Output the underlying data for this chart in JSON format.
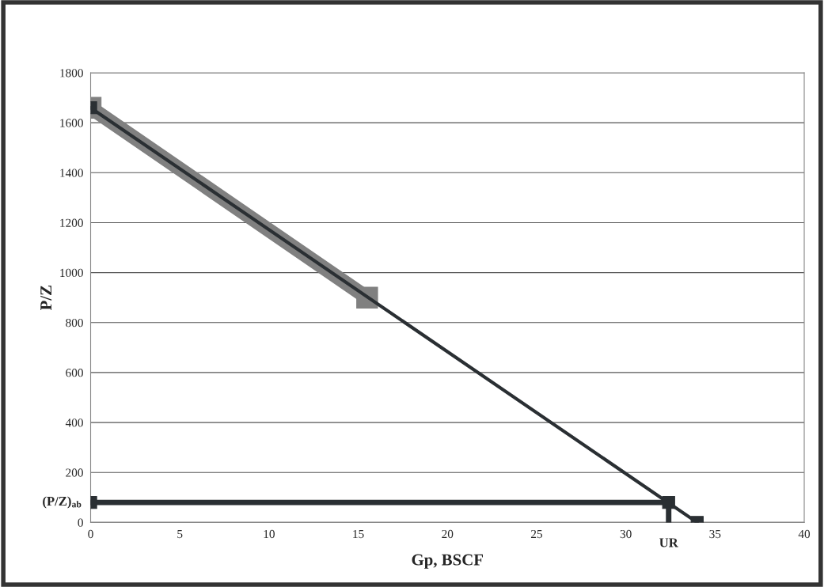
{
  "chart_data": {
    "type": "line",
    "xlabel": "Gp, BSCF",
    "ylabel": "P/Z",
    "xlim": [
      0,
      40
    ],
    "xticks": [
      0,
      5,
      10,
      15,
      20,
      25,
      30,
      35,
      40
    ],
    "ylim": [
      0,
      1800
    ],
    "yticks": [
      0,
      200,
      400,
      600,
      800,
      1000,
      1200,
      1400,
      1600,
      1800
    ],
    "grid": "y",
    "legend": false,
    "series": [
      {
        "x": [
          0,
          15.5
        ],
        "values": [
          1660,
          900
        ],
        "color": "#808080",
        "marker": "square",
        "line_style": "solid"
      },
      {
        "x": [
          0,
          34
        ],
        "values": [
          1660,
          0
        ],
        "color": "#2a2f33",
        "marker": "square",
        "line_style": "solid"
      },
      {
        "x": [
          0,
          32.4
        ],
        "values": [
          80,
          80
        ],
        "color": "#2a2f33",
        "marker": "square",
        "line_style": "solid"
      },
      {
        "x": [
          32.4,
          32.4
        ],
        "values": [
          80,
          0
        ],
        "color": "#2a2f33",
        "marker": "none",
        "line_style": "solid"
      }
    ],
    "annotations": [
      {
        "text": "(P/Z)$_{ab}$",
        "x": 0,
        "y": 80
      },
      {
        "text": "UR",
        "x": 32.4,
        "y": 0
      }
    ]
  }
}
